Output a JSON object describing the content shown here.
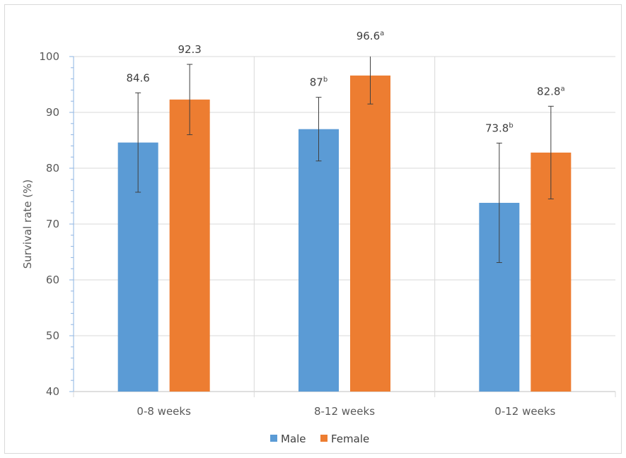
{
  "chart_data": {
    "type": "bar",
    "categories": [
      "0-8 weeks",
      "8-12 weeks",
      "0-12 weeks"
    ],
    "series": [
      {
        "name": "Male",
        "color": "#5b9bd5",
        "values": [
          84.6,
          87,
          73.8
        ],
        "error_low": [
          75.7,
          81.3,
          63.1
        ],
        "error_high": [
          93.5,
          92.7,
          84.5
        ],
        "labels": [
          {
            "text": "84.6",
            "sup": ""
          },
          {
            "text": "87",
            "sup": "b"
          },
          {
            "text": "73.8",
            "sup": "b"
          }
        ]
      },
      {
        "name": "Female",
        "color": "#ed7d31",
        "values": [
          92.3,
          96.6,
          82.8
        ],
        "error_low": [
          86.0,
          91.5,
          74.5
        ],
        "error_high": [
          98.6,
          101.0,
          91.1
        ],
        "labels": [
          {
            "text": "92.3",
            "sup": ""
          },
          {
            "text": "96.6",
            "sup": "a"
          },
          {
            "text": "82.8",
            "sup": "a"
          }
        ]
      }
    ],
    "title": "",
    "xlabel": "",
    "ylabel": "Survival rate (%)",
    "ylim": [
      40,
      100
    ],
    "yticks": [
      40,
      50,
      60,
      70,
      80,
      90,
      100
    ],
    "grid": true,
    "legend_position": "bottom"
  }
}
